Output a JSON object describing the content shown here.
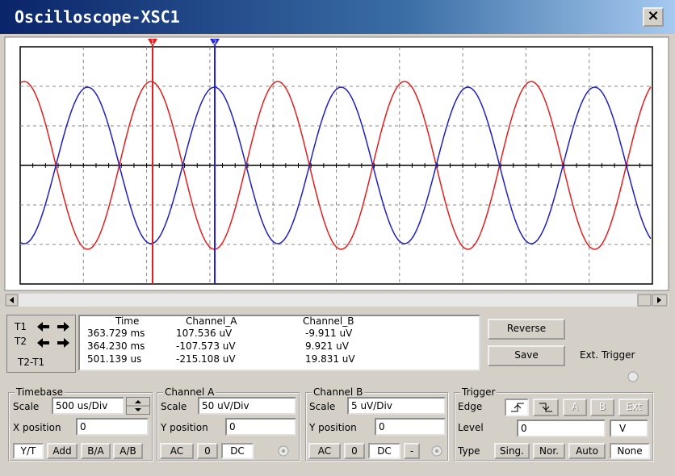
{
  "window": {
    "title": "Oscilloscope-XSC1",
    "close": "×"
  },
  "cursors": {
    "t1": "1",
    "t2": "2"
  },
  "readout": {
    "row_labels": [
      "T1",
      "T2",
      "T2-T1"
    ],
    "headers": [
      "Time",
      "Channel_A",
      "Channel_B"
    ],
    "rows": [
      [
        "363.729 ms",
        "107.536 uV",
        "-9.911 uV"
      ],
      [
        "364.230 ms",
        "-107.573 uV",
        "9.921 uV"
      ],
      [
        "501.139 us",
        "-215.108 uV",
        "19.831 uV"
      ]
    ]
  },
  "buttons": {
    "reverse": "Reverse",
    "save": "Save"
  },
  "ext_trigger": "Ext. Trigger",
  "timebase": {
    "legend": "Timebase",
    "scale_label": "Scale",
    "scale": "500 us/Div",
    "xpos_label": "X position",
    "xpos": "0",
    "modes": [
      "Y/T",
      "Add",
      "B/A",
      "A/B"
    ]
  },
  "channel_a": {
    "legend": "Channel A",
    "scale_label": "Scale",
    "scale": "50 uV/Div",
    "ypos_label": "Y position",
    "ypos": "0",
    "coupling": [
      "AC",
      "0",
      "DC"
    ]
  },
  "channel_b": {
    "legend": "Channel B",
    "scale_label": "Scale",
    "scale": "5 uV/Div",
    "ypos_label": "Y position",
    "ypos": "0",
    "coupling": [
      "AC",
      "0",
      "DC",
      "-"
    ]
  },
  "trigger": {
    "legend": "Trigger",
    "edge_label": "Edge",
    "edges": [
      "A",
      "B",
      "Ext"
    ],
    "level_label": "Level",
    "level": "0",
    "level_unit": "V",
    "type_label": "Type",
    "types": [
      "Sing.",
      "Nor.",
      "Auto",
      "None"
    ]
  }
}
